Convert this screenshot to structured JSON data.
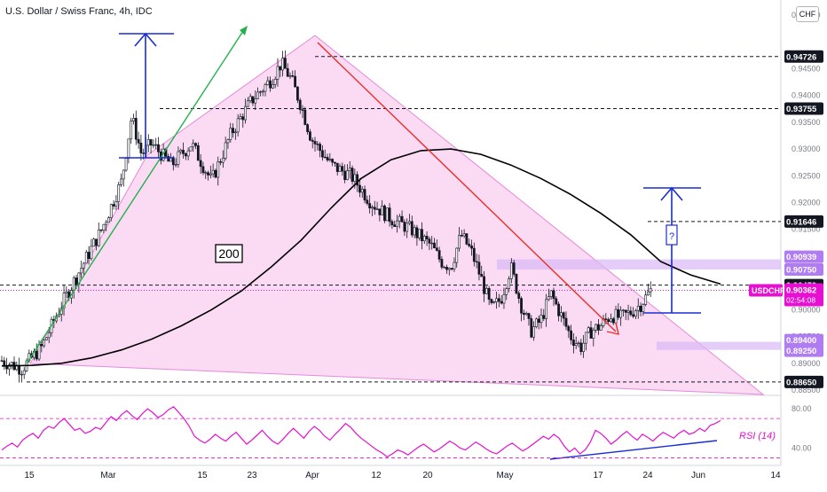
{
  "header": {
    "title": "U.S. Dollar / Swiss Franc, 4h, IDC",
    "currency": "CHF"
  },
  "colors": {
    "candle": "#131722",
    "ma": "#000000",
    "wedge_fill": "#f9cdf0",
    "wedge_line": "#e68ad9",
    "trend_green": "#22b14c",
    "trend_red": "#e8302a",
    "arrow_blue": "#1a2cd6",
    "zone": "#d9b8f5",
    "rsi": "#e60fd2",
    "price_label": "#e60fd2"
  },
  "chart_data": [
    {
      "type": "candlestick",
      "title": "U.S. Dollar / Swiss Franc, 4h, IDC",
      "x_ticks": [
        "15",
        "Mar",
        "15",
        "23",
        "Apr",
        "12",
        "20",
        "May",
        "17",
        "24",
        "Jun",
        "14"
      ],
      "ylim": [
        0.8835,
        0.9585
      ],
      "y_ticks": [
        "0.95500",
        "0.94500",
        "0.94000",
        "0.93500",
        "0.93000",
        "0.92500",
        "0.92000",
        "0.91500",
        "0.90000",
        "0.89500",
        "0.89000",
        "0.88500"
      ],
      "series": [
        {
          "name": "200",
          "kind": "moving-average",
          "values": [
            [
              0,
              0.8895
            ],
            [
              6,
              0.8896
            ],
            [
              12,
              0.89
            ],
            [
              18,
              0.891
            ],
            [
              24,
              0.8925
            ],
            [
              30,
              0.8945
            ],
            [
              36,
              0.897
            ],
            [
              42,
              0.9
            ],
            [
              48,
              0.9035
            ],
            [
              54,
              0.908
            ],
            [
              60,
              0.913
            ],
            [
              66,
              0.919
            ],
            [
              72,
              0.9245
            ],
            [
              78,
              0.928
            ],
            [
              84,
              0.9297
            ],
            [
              90,
              0.93
            ],
            [
              96,
              0.929
            ],
            [
              102,
              0.927
            ],
            [
              108,
              0.9245
            ],
            [
              114,
              0.9215
            ],
            [
              120,
              0.918
            ],
            [
              126,
              0.914
            ],
            [
              132,
              0.909
            ],
            [
              138,
              0.9065
            ],
            [
              144,
              0.9048
            ]
          ]
        }
      ],
      "ohlc_path": [
        [
          0,
          0.8905
        ],
        [
          4,
          0.889
        ],
        [
          8,
          0.893
        ],
        [
          12,
          0.901
        ],
        [
          16,
          0.908
        ],
        [
          20,
          0.915
        ],
        [
          24,
          0.924
        ],
        [
          26,
          0.936
        ],
        [
          28,
          0.929
        ],
        [
          30,
          0.931
        ],
        [
          34,
          0.927
        ],
        [
          38,
          0.931
        ],
        [
          42,
          0.924
        ],
        [
          46,
          0.933
        ],
        [
          50,
          0.939
        ],
        [
          54,
          0.943
        ],
        [
          56,
          0.946
        ],
        [
          58,
          0.943
        ],
        [
          60,
          0.938
        ],
        [
          62,
          0.932
        ],
        [
          66,
          0.927
        ],
        [
          70,
          0.925
        ],
        [
          74,
          0.92
        ],
        [
          78,
          0.917
        ],
        [
          82,
          0.915
        ],
        [
          86,
          0.912
        ],
        [
          88,
          0.909
        ],
        [
          90,
          0.908
        ],
        [
          92,
          0.914
        ],
        [
          94,
          0.911
        ],
        [
          96,
          0.906
        ],
        [
          98,
          0.9
        ],
        [
          100,
          0.902
        ],
        [
          102,
          0.908
        ],
        [
          104,
          0.901
        ],
        [
          106,
          0.896
        ],
        [
          108,
          0.898
        ],
        [
          110,
          0.903
        ],
        [
          112,
          0.899
        ],
        [
          114,
          0.895
        ],
        [
          116,
          0.893
        ],
        [
          118,
          0.896
        ],
        [
          120,
          0.897
        ],
        [
          122,
          0.899
        ],
        [
          124,
          0.8985
        ],
        [
          126,
          0.8995
        ],
        [
          128,
          0.901
        ],
        [
          130,
          0.9036
        ]
      ],
      "horizontal_levels": [
        0.94726,
        0.93755,
        0.91646,
        0.90459,
        0.8865
      ],
      "zones": [
        [
          0.9075,
          0.90939
        ],
        [
          0.8925,
          0.894
        ]
      ],
      "current_price": 0.90362,
      "countdown": "02:54:08",
      "symbol": "USDCHF",
      "annotations": [
        "200",
        "?"
      ]
    },
    {
      "type": "line",
      "title": "RSI (14)",
      "ylim": [
        25,
        90
      ],
      "y_ticks": [
        "80.00",
        "40.00"
      ],
      "guide_levels": [
        70,
        30
      ],
      "values": [
        38,
        42,
        45,
        41,
        48,
        52,
        55,
        50,
        58,
        62,
        60,
        66,
        70,
        64,
        58,
        60,
        55,
        57,
        61,
        59,
        66,
        72,
        68,
        74,
        78,
        73,
        69,
        75,
        80,
        76,
        71,
        74,
        79,
        82,
        76,
        70,
        62,
        52,
        48,
        45,
        49,
        54,
        50,
        47,
        52,
        56,
        50,
        44,
        48,
        53,
        58,
        52,
        47,
        44,
        49,
        55,
        60,
        55,
        50,
        57,
        62,
        58,
        52,
        48,
        54,
        59,
        65,
        61,
        55,
        50,
        46,
        42,
        38,
        35,
        31,
        34,
        38,
        36,
        33,
        37,
        41,
        44,
        40,
        36,
        39,
        43,
        47,
        44,
        40,
        38,
        42,
        46,
        43,
        39,
        36,
        34,
        38,
        42,
        45,
        41,
        37,
        40,
        44,
        48,
        52,
        49,
        54,
        50,
        42,
        36,
        40,
        34,
        38,
        46,
        58,
        55,
        50,
        44,
        48,
        53,
        57,
        52,
        48,
        54,
        51,
        47,
        52,
        56,
        53,
        50,
        55,
        58,
        54,
        56,
        60,
        57,
        63,
        65,
        68
      ]
    }
  ],
  "price_labels": {
    "p94726": "0.94726",
    "p93755": "0.93755",
    "p91646": "0.91646",
    "p90939": "0.90939",
    "p90750": "0.90750",
    "p90459": "0.90459",
    "p90362": "0.90362",
    "p89400": "0.89400",
    "p89250": "0.89250",
    "p88650": "0.88650"
  },
  "rsi_label": "RSI (14)",
  "ma_label": "200",
  "question_label": "?"
}
